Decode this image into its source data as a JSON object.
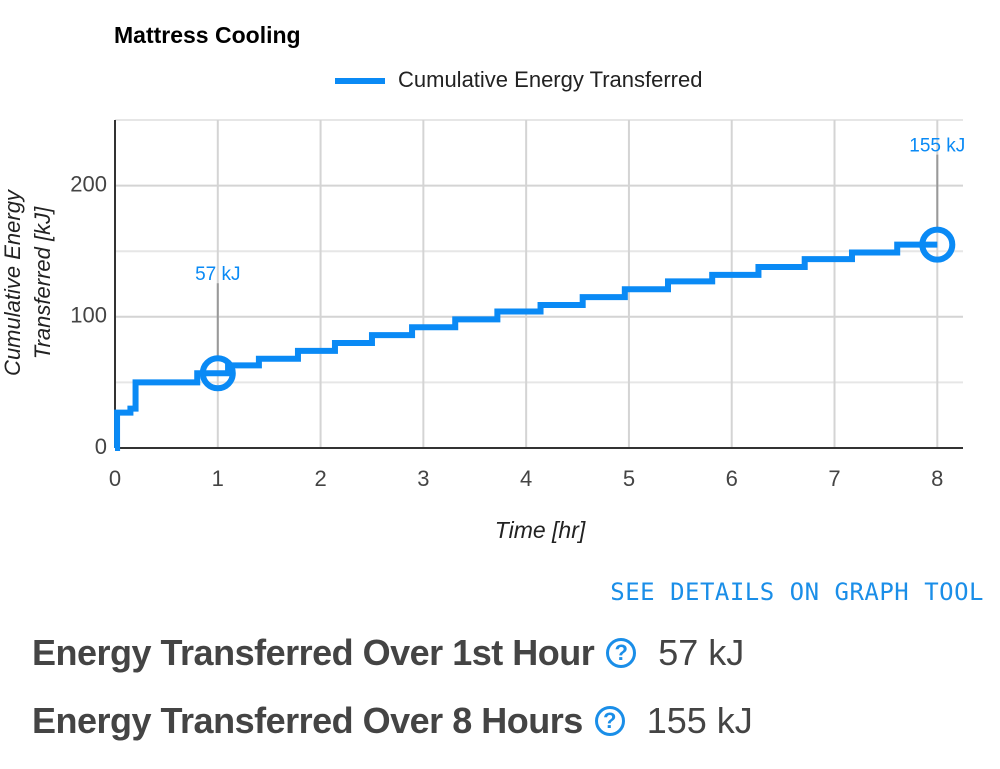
{
  "chart_data": {
    "type": "line",
    "title": "Mattress Cooling",
    "xlabel": "Time [hr]",
    "ylabel": [
      "Cumulative Energy",
      "Transferred [kJ]"
    ],
    "xlim": [
      0,
      8.25
    ],
    "ylim": [
      0,
      250
    ],
    "xticks": [
      0,
      1,
      2,
      3,
      4,
      5,
      6,
      7,
      8
    ],
    "yticks": [
      0,
      100,
      200
    ],
    "minor_yticks": [
      50,
      150,
      250
    ],
    "grid": true,
    "legend": "top",
    "series": [
      {
        "name": "Cumulative Energy Transferred",
        "color": "#0a8af5",
        "x": [
          0,
          0.02,
          0.02,
          0.15,
          0.15,
          0.2,
          0.2,
          0.8,
          0.8,
          1.1,
          1.1,
          1.4,
          1.4,
          1.78,
          1.78,
          2.14,
          2.14,
          2.5,
          2.5,
          2.89,
          2.89,
          3.31,
          3.31,
          3.72,
          3.72,
          4.14,
          4.14,
          4.55,
          4.55,
          4.96,
          4.96,
          5.38,
          5.38,
          5.81,
          5.81,
          6.26,
          6.26,
          6.71,
          6.71,
          7.17,
          7.17,
          7.61,
          7.61,
          8
        ],
        "values": [
          0,
          0,
          27,
          27,
          30,
          30,
          50,
          50,
          57,
          57,
          63,
          63,
          68,
          68,
          74,
          74,
          80,
          80,
          86,
          86,
          92,
          92,
          98,
          98,
          104,
          104,
          109,
          109,
          115,
          115,
          121,
          121,
          127,
          127,
          132,
          132,
          138,
          138,
          144,
          144,
          149,
          149,
          155,
          155
        ]
      }
    ],
    "annotations": [
      {
        "x": 1,
        "value": 57,
        "label": "57 kJ"
      },
      {
        "x": 8,
        "value": 155,
        "label": "155 kJ"
      }
    ]
  },
  "link": "SEE DETAILS ON GRAPH TOOL",
  "metrics": [
    {
      "label": "Energy Transferred Over 1st Hour",
      "value": "57 kJ"
    },
    {
      "label": "Energy Transferred Over 8 Hours",
      "value": "155 kJ"
    }
  ]
}
